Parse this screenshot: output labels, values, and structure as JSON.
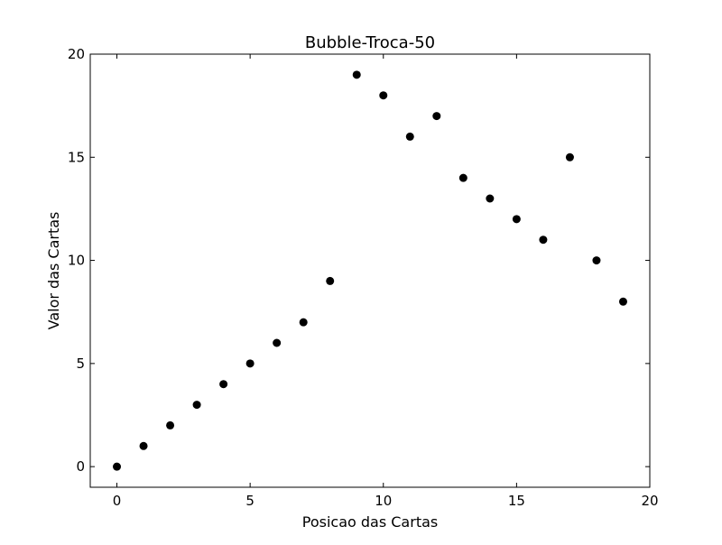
{
  "chart_data": {
    "type": "scatter",
    "title": "Bubble-Troca-50",
    "xlabel": "Posicao das Cartas",
    "ylabel": "Valor das Cartas",
    "xlim": [
      -1,
      20
    ],
    "ylim": [
      -1,
      20
    ],
    "xticks": [
      0,
      5,
      10,
      15,
      20
    ],
    "yticks": [
      0,
      5,
      10,
      15,
      20
    ],
    "grid": false,
    "series": [
      {
        "color": "#000000",
        "marker": "circle",
        "points": [
          {
            "x": 0,
            "y": 0
          },
          {
            "x": 1,
            "y": 1
          },
          {
            "x": 2,
            "y": 2
          },
          {
            "x": 3,
            "y": 3
          },
          {
            "x": 4,
            "y": 4
          },
          {
            "x": 5,
            "y": 5
          },
          {
            "x": 6,
            "y": 6
          },
          {
            "x": 7,
            "y": 7
          },
          {
            "x": 8,
            "y": 9
          },
          {
            "x": 9,
            "y": 19
          },
          {
            "x": 10,
            "y": 18
          },
          {
            "x": 11,
            "y": 16
          },
          {
            "x": 12,
            "y": 17
          },
          {
            "x": 13,
            "y": 14
          },
          {
            "x": 14,
            "y": 13
          },
          {
            "x": 15,
            "y": 12
          },
          {
            "x": 16,
            "y": 11
          },
          {
            "x": 17,
            "y": 15
          },
          {
            "x": 18,
            "y": 10
          },
          {
            "x": 19,
            "y": 8
          }
        ]
      }
    ]
  }
}
